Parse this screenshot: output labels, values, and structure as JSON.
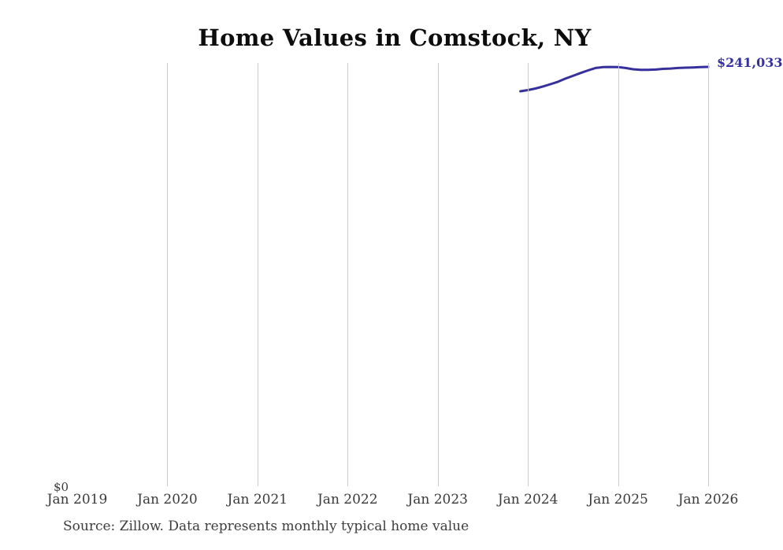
{
  "chart": {
    "title": "Home Values in Comstock, NY",
    "y_zero_label": "$0",
    "end_value_label": "$241,033",
    "source_note": "Source: Zillow. Data represents monthly typical home value",
    "colors": {
      "line": "#36309c",
      "end_label": "#34309e",
      "gridline": "#cccccc",
      "title": "#0d0d0d",
      "tick_label": "#3a3a3a",
      "source_note": "#3d3d3d",
      "background": "#ffffff"
    }
  },
  "chart_data": {
    "type": "line",
    "title": "Home Values in Comstock, NY",
    "xlabel": "",
    "ylabel": "",
    "legend": "none",
    "grid": "vertical-only",
    "x_tick_labels": [
      "Jan 2019",
      "Jan 2020",
      "Jan 2021",
      "Jan 2022",
      "Jan 2023",
      "Jan 2024",
      "Jan 2025",
      "Jan 2026"
    ],
    "x_range_years": [
      2019,
      2026
    ],
    "ylim": [
      0,
      243300
    ],
    "y_zero_label": "$0",
    "end_label": "$241,033",
    "series": [
      {
        "name": "Monthly typical home value",
        "x": [
          "2023-12",
          "2024-01",
          "2024-02",
          "2024-03",
          "2024-04",
          "2024-05",
          "2024-06",
          "2024-07",
          "2024-08",
          "2024-09",
          "2024-10",
          "2024-11",
          "2024-12",
          "2025-01",
          "2025-02",
          "2025-03",
          "2025-04",
          "2025-05",
          "2025-06",
          "2025-07",
          "2025-08",
          "2025-09",
          "2025-10",
          "2025-11",
          "2025-12",
          "2026-01"
        ],
        "values": [
          227000,
          227700,
          228600,
          229800,
          231100,
          232500,
          234300,
          235900,
          237500,
          239000,
          240400,
          240900,
          241000,
          240900,
          240400,
          239700,
          239300,
          239300,
          239500,
          239900,
          240100,
          240400,
          240600,
          240700,
          240900,
          241033
        ]
      }
    ]
  }
}
